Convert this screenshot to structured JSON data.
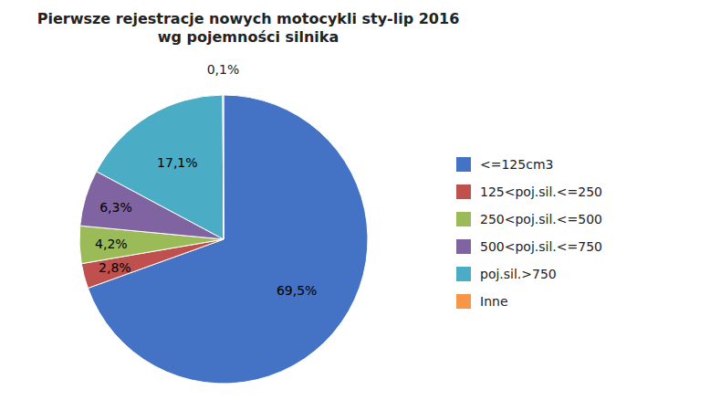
{
  "chart_data": {
    "type": "pie",
    "title": "Pierwsze rejestracje nowych motocykli sty-lip 2016\nwg pojemności silnika",
    "categories": [
      "<=125cm3",
      "125<poj.sil.<=250",
      "250<poj.sil.<=500",
      "500<poj.sil.<=750",
      "poj.sil.>750",
      "Inne"
    ],
    "values": [
      69.5,
      2.8,
      4.2,
      6.3,
      17.1,
      0.1
    ],
    "value_labels": [
      "69,5%",
      "2,8%",
      "4,2%",
      "6,3%",
      "17,1%",
      "0,1%"
    ],
    "colors": [
      "#4472C4",
      "#C0504D",
      "#9BBB59",
      "#8064A2",
      "#4BACC6",
      "#F79646"
    ],
    "data_labels": true,
    "legend": "right"
  }
}
